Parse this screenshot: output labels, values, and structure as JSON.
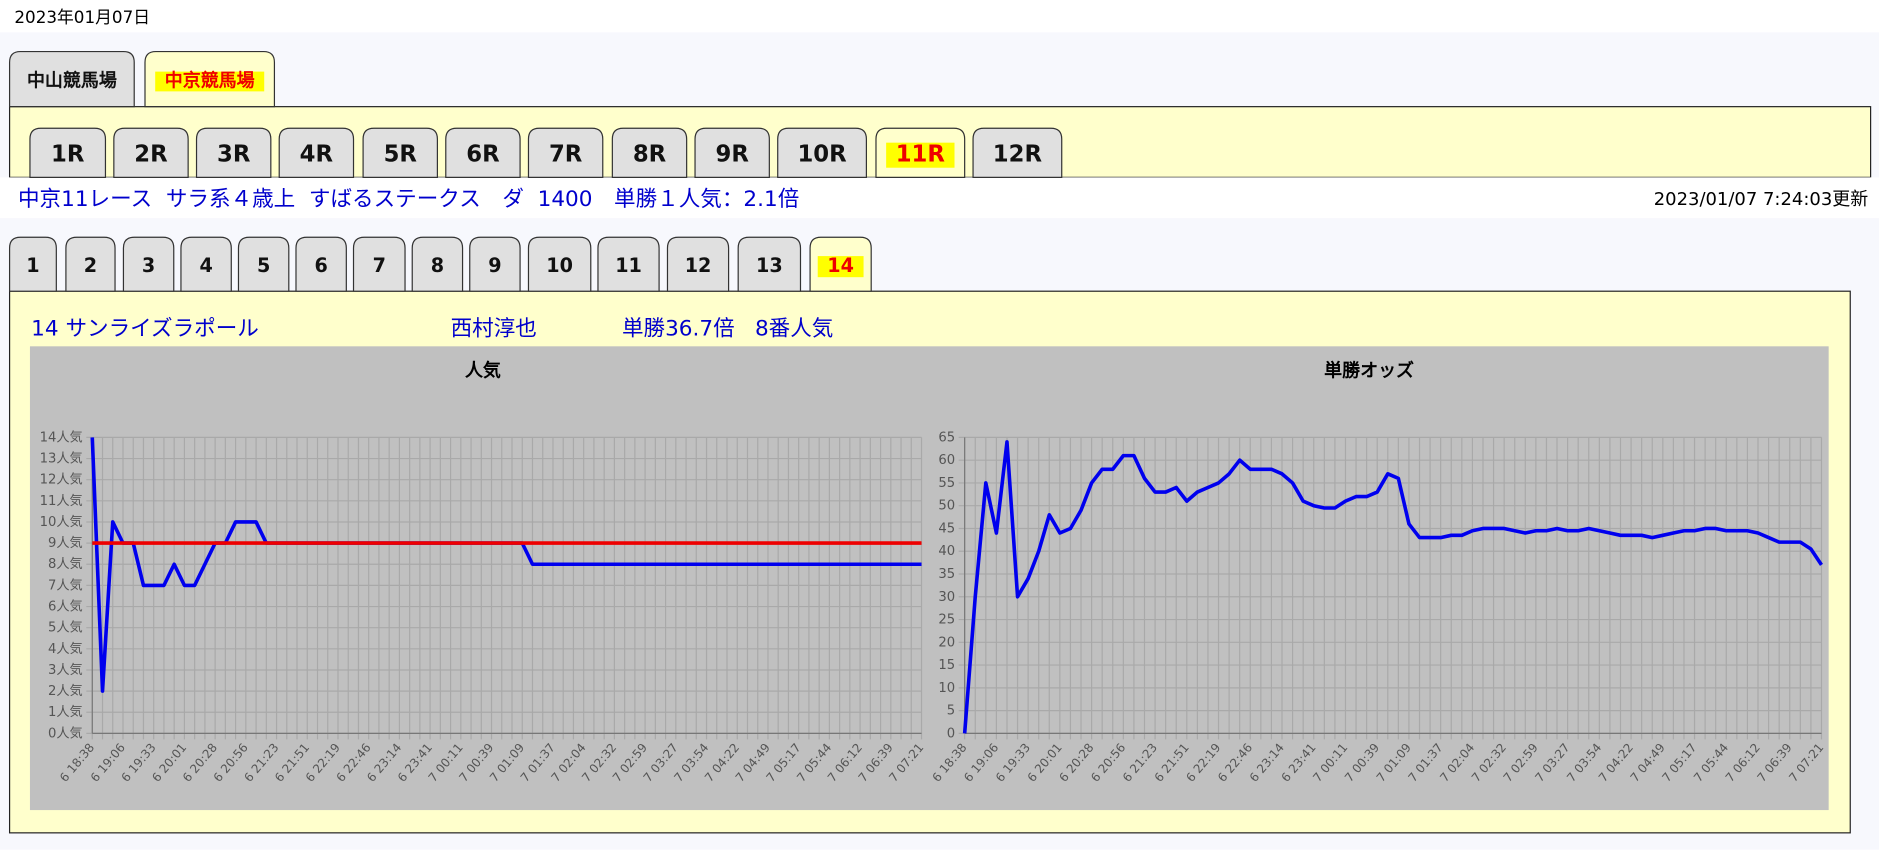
{
  "date": "2023年01月07日",
  "venue_tabs": {
    "items": [
      "中山競馬場",
      "中京競馬場"
    ],
    "active": 1
  },
  "race_tabs": {
    "items": [
      "1R",
      "2R",
      "3R",
      "4R",
      "5R",
      "6R",
      "7R",
      "8R",
      "9R",
      "10R",
      "11R",
      "12R"
    ],
    "active": 10
  },
  "race_info": "中京11レース  サラ系４歳上  すばるステークス　ダ  1400　単勝１人気：2.1倍",
  "updated": "2023/01/07 7:24:03更新",
  "horse_tabs": {
    "items": [
      "1",
      "2",
      "3",
      "4",
      "5",
      "6",
      "7",
      "8",
      "9",
      "10",
      "11",
      "12",
      "13",
      "14"
    ],
    "active": 13
  },
  "horse_info": {
    "name": "14 サンライズラポール",
    "jockey": "西村淳也",
    "odds": "単勝36.7倍",
    "popularity": "8番人気"
  },
  "chart_data": [
    {
      "type": "line",
      "title": "人気",
      "grid": true,
      "categories": [
        "6 18:38",
        null,
        null,
        "6 19:06",
        null,
        null,
        "6 19:33",
        null,
        null,
        "6 20:01",
        null,
        null,
        "6 20:28",
        null,
        null,
        "6 20:56",
        null,
        null,
        "6 21:23",
        null,
        null,
        "6 21:51",
        null,
        null,
        "6 22:19",
        null,
        null,
        "6 22:46",
        null,
        null,
        "6 23:14",
        null,
        null,
        "6 23:41",
        null,
        null,
        "7 00:11",
        null,
        null,
        "7 00:39",
        null,
        null,
        "7 01:09",
        null,
        null,
        "7 01:37",
        null,
        null,
        "7 02:04",
        null,
        null,
        "7 02:32",
        null,
        null,
        "7 02:59",
        null,
        null,
        "7 03:27",
        null,
        null,
        "7 03:54",
        null,
        null,
        "7 04:22",
        null,
        null,
        "7 04:49",
        null,
        null,
        "7 05:17",
        null,
        null,
        "7 05:44",
        null,
        null,
        "7 06:12",
        null,
        null,
        "7 06:39",
        null,
        null,
        "7 07:21"
      ],
      "ylim": [
        0,
        14
      ],
      "yticks": [
        {
          "value": 0,
          "label": "0人気"
        },
        {
          "value": 1,
          "label": "1人気"
        },
        {
          "value": 2,
          "label": "2人気"
        },
        {
          "value": 3,
          "label": "3人気"
        },
        {
          "value": 4,
          "label": "4人気"
        },
        {
          "value": 5,
          "label": "5人気"
        },
        {
          "value": 6,
          "label": "6人気"
        },
        {
          "value": 7,
          "label": "7人気"
        },
        {
          "value": 8,
          "label": "8人気"
        },
        {
          "value": 9,
          "label": "9人気"
        },
        {
          "value": 10,
          "label": "10人気"
        },
        {
          "value": 11,
          "label": "11人気"
        },
        {
          "value": 12,
          "label": "12人気"
        },
        {
          "value": 13,
          "label": "13人気"
        },
        {
          "value": 14,
          "label": "14人気"
        }
      ],
      "series": [
        {
          "color": "#0000ee",
          "values": [
            14,
            2,
            10,
            9,
            9,
            7,
            7,
            7,
            8,
            7,
            7,
            8,
            9,
            9,
            10,
            10,
            10,
            9,
            9,
            9,
            9,
            9,
            9,
            9,
            9,
            9,
            9,
            9,
            9,
            9,
            9,
            9,
            9,
            9,
            9,
            9,
            9,
            9,
            9,
            9,
            9,
            9,
            9,
            8,
            8,
            8,
            8,
            8,
            8,
            8,
            8,
            8,
            8,
            8,
            8,
            8,
            8,
            8,
            8,
            8,
            8,
            8,
            8,
            8,
            8,
            8,
            8,
            8,
            8,
            8,
            8,
            8,
            8,
            8,
            8,
            8,
            8,
            8,
            8,
            8,
            8,
            8
          ]
        },
        {
          "color": "#ee0000",
          "values": [
            9,
            9,
            9,
            9,
            9,
            9,
            9,
            9,
            9,
            9,
            9,
            9,
            9,
            9,
            9,
            9,
            9,
            9,
            9,
            9,
            9,
            9,
            9,
            9,
            9,
            9,
            9,
            9,
            9,
            9,
            9,
            9,
            9,
            9,
            9,
            9,
            9,
            9,
            9,
            9,
            9,
            9,
            9,
            9,
            9,
            9,
            9,
            9,
            9,
            9,
            9,
            9,
            9,
            9,
            9,
            9,
            9,
            9,
            9,
            9,
            9,
            9,
            9,
            9,
            9,
            9,
            9,
            9,
            9,
            9,
            9,
            9,
            9,
            9,
            9,
            9,
            9,
            9,
            9,
            9,
            9,
            9
          ]
        }
      ]
    },
    {
      "type": "line",
      "title": "単勝オッズ",
      "grid": true,
      "categories": [
        "6 18:38",
        null,
        null,
        "6 19:06",
        null,
        null,
        "6 19:33",
        null,
        null,
        "6 20:01",
        null,
        null,
        "6 20:28",
        null,
        null,
        "6 20:56",
        null,
        null,
        "6 21:23",
        null,
        null,
        "6 21:51",
        null,
        null,
        "6 22:19",
        null,
        null,
        "6 22:46",
        null,
        null,
        "6 23:14",
        null,
        null,
        "6 23:41",
        null,
        null,
        "7 00:11",
        null,
        null,
        "7 00:39",
        null,
        null,
        "7 01:09",
        null,
        null,
        "7 01:37",
        null,
        null,
        "7 02:04",
        null,
        null,
        "7 02:32",
        null,
        null,
        "7 02:59",
        null,
        null,
        "7 03:27",
        null,
        null,
        "7 03:54",
        null,
        null,
        "7 04:22",
        null,
        null,
        "7 04:49",
        null,
        null,
        "7 05:17",
        null,
        null,
        "7 05:44",
        null,
        null,
        "7 06:12",
        null,
        null,
        "7 06:39",
        null,
        null,
        "7 07:21"
      ],
      "ylim": [
        0,
        65
      ],
      "yticks": [
        0,
        5,
        10,
        15,
        20,
        25,
        30,
        35,
        40,
        45,
        50,
        55,
        60,
        65
      ],
      "series": [
        {
          "color": "#0000ee",
          "values": [
            0,
            30,
            55,
            44,
            64,
            30,
            34,
            40,
            48,
            44,
            45,
            49,
            55,
            58,
            58,
            61,
            61,
            56,
            53,
            53,
            54,
            51,
            53,
            54,
            55,
            57,
            60,
            58,
            58,
            58,
            57,
            55,
            51,
            50,
            49.5,
            49.5,
            51,
            52,
            52,
            53,
            57,
            56,
            46,
            43,
            43,
            43,
            43.5,
            43.5,
            44.5,
            45,
            45,
            45,
            44.5,
            44,
            44.5,
            44.5,
            45,
            44.5,
            44.5,
            45,
            44.5,
            44,
            43.5,
            43.5,
            43.5,
            43,
            43.5,
            44,
            44.5,
            44.5,
            45,
            45,
            44.5,
            44.5,
            44.5,
            44,
            43,
            42,
            42,
            42,
            40.5,
            37
          ]
        }
      ]
    }
  ]
}
